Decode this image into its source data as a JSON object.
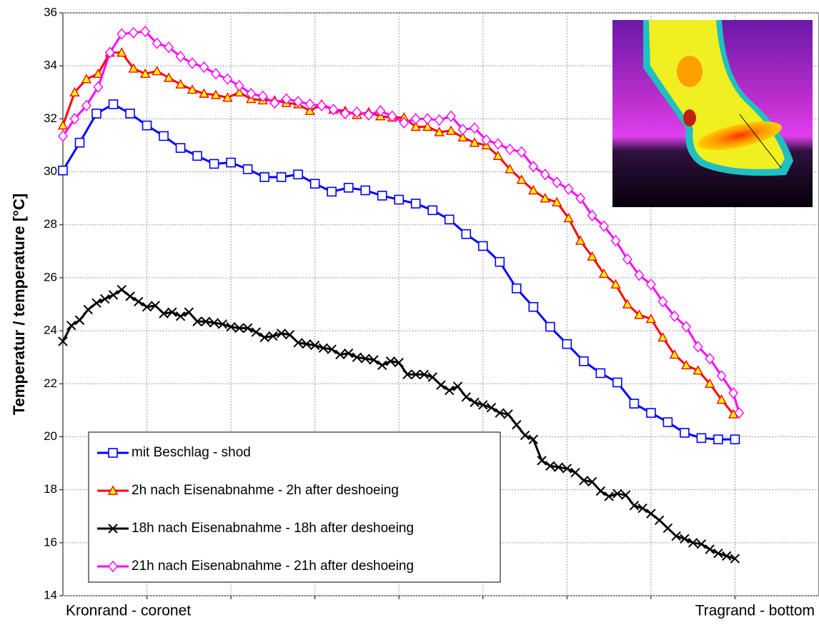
{
  "chart_data": {
    "type": "line",
    "y_label": "Temperatur / temperature [°C]",
    "ylim": [
      14,
      36
    ],
    "yticks": [
      14,
      16,
      18,
      20,
      22,
      24,
      26,
      28,
      30,
      32,
      34,
      36
    ],
    "xlim": [
      0,
      9
    ],
    "xgrid": [
      1,
      2,
      3,
      4,
      5,
      6,
      7,
      8
    ],
    "x_labels": [
      {
        "value": 0,
        "label": "Kronrand - coronet"
      },
      {
        "value": 9,
        "label": "Tragrand - bottom"
      }
    ],
    "grid": true,
    "legend": "lower left",
    "series": [
      {
        "name": "mit Beschlag - shod",
        "color": "#0000ff",
        "marker": "square",
        "x": [
          0,
          0.2,
          0.4,
          0.6,
          0.8,
          1,
          1.2,
          1.4,
          1.6,
          1.8,
          2,
          2.2,
          2.4,
          2.6,
          2.8,
          3,
          3.2,
          3.4,
          3.6,
          3.8,
          4,
          4.2,
          4.4,
          4.6,
          4.8,
          5,
          5.2,
          5.4,
          5.6,
          5.8,
          6,
          6.2,
          6.4,
          6.6,
          6.8,
          7,
          7.2,
          7.4,
          7.6,
          7.8,
          8
        ],
        "values": [
          30.05,
          31.1,
          32.2,
          32.55,
          32.2,
          31.75,
          31.35,
          30.9,
          30.6,
          30.3,
          30.35,
          30.1,
          29.8,
          29.8,
          29.9,
          29.55,
          29.25,
          29.4,
          29.3,
          29.1,
          28.95,
          28.8,
          28.55,
          28.2,
          27.65,
          27.2,
          26.6,
          25.6,
          24.9,
          24.15,
          23.5,
          22.85,
          22.4,
          22.05,
          21.25,
          20.9,
          20.55,
          20.15,
          19.95,
          19.9,
          19.9
        ]
      },
      {
        "name": "2h nach Eisenabnahme - 2h after deshoeing",
        "color": "#ff0000",
        "marker": "triangle",
        "x": [
          0,
          0.14,
          0.28,
          0.42,
          0.56,
          0.7,
          0.84,
          0.98,
          1.12,
          1.26,
          1.4,
          1.54,
          1.68,
          1.82,
          1.96,
          2.1,
          2.24,
          2.38,
          2.52,
          2.66,
          2.8,
          2.94,
          3.08,
          3.22,
          3.36,
          3.5,
          3.64,
          3.78,
          3.92,
          4.06,
          4.2,
          4.34,
          4.48,
          4.62,
          4.76,
          4.9,
          5.04,
          5.18,
          5.32,
          5.46,
          5.6,
          5.74,
          5.88,
          6.02,
          6.16,
          6.3,
          6.44,
          6.58,
          6.72,
          6.86,
          7,
          7.14,
          7.28,
          7.42,
          7.56,
          7.7,
          7.84,
          7.98
        ],
        "values": [
          31.75,
          33.0,
          33.5,
          33.7,
          34.5,
          34.5,
          33.9,
          33.7,
          33.8,
          33.55,
          33.3,
          33.1,
          32.95,
          32.9,
          32.8,
          33.0,
          32.75,
          32.7,
          32.7,
          32.6,
          32.55,
          32.3,
          32.55,
          32.35,
          32.3,
          32.15,
          32.25,
          32.1,
          32.05,
          32.05,
          31.7,
          31.7,
          31.5,
          31.55,
          31.3,
          31.1,
          31.0,
          30.6,
          30.1,
          29.7,
          29.3,
          29.0,
          28.85,
          28.25,
          27.4,
          26.8,
          26.15,
          25.75,
          25.0,
          24.6,
          24.45,
          23.75,
          23.1,
          22.7,
          22.5,
          22.0,
          21.4,
          20.85
        ]
      },
      {
        "name": "18h nach Eisenabnahme - 18h after deshoeing",
        "color": "#000000",
        "marker": "cross",
        "x": [
          0,
          0.1,
          0.2,
          0.3,
          0.4,
          0.5,
          0.6,
          0.7,
          0.8,
          0.9,
          1,
          1.1,
          1.2,
          1.3,
          1.4,
          1.5,
          1.6,
          1.7,
          1.8,
          1.9,
          2,
          2.1,
          2.2,
          2.3,
          2.4,
          2.5,
          2.6,
          2.7,
          2.8,
          2.9,
          3,
          3.1,
          3.2,
          3.3,
          3.4,
          3.5,
          3.6,
          3.7,
          3.8,
          3.9,
          4,
          4.1,
          4.2,
          4.3,
          4.4,
          4.5,
          4.6,
          4.7,
          4.8,
          4.9,
          5,
          5.1,
          5.2,
          5.3,
          5.4,
          5.5,
          5.6,
          5.7,
          5.8,
          5.9,
          6,
          6.1,
          6.2,
          6.3,
          6.4,
          6.5,
          6.6,
          6.7,
          6.8,
          6.9,
          7,
          7.1,
          7.2,
          7.3,
          7.4,
          7.5,
          7.6,
          7.7,
          7.8,
          7.9,
          8
        ],
        "values": [
          23.6,
          24.2,
          24.4,
          24.8,
          25.05,
          25.2,
          25.35,
          25.55,
          25.3,
          25.1,
          24.9,
          24.95,
          24.65,
          24.7,
          24.55,
          24.7,
          24.35,
          24.35,
          24.3,
          24.25,
          24.15,
          24.1,
          24.1,
          23.95,
          23.75,
          23.8,
          23.9,
          23.85,
          23.55,
          23.5,
          23.45,
          23.35,
          23.3,
          23.1,
          23.15,
          23.0,
          22.95,
          22.9,
          22.7,
          22.85,
          22.8,
          22.35,
          22.35,
          22.35,
          22.25,
          21.95,
          21.75,
          21.9,
          21.5,
          21.3,
          21.2,
          21.1,
          20.9,
          20.85,
          20.45,
          20.05,
          19.9,
          19.1,
          18.9,
          18.85,
          18.8,
          18.65,
          18.35,
          18.3,
          17.95,
          17.75,
          17.85,
          17.8,
          17.4,
          17.3,
          17.1,
          16.85,
          16.55,
          16.25,
          16.15,
          16.0,
          15.95,
          15.75,
          15.6,
          15.5,
          15.4
        ]
      },
      {
        "name": "21h nach Eisenabnahme - 21h after deshoeing",
        "color": "#ff00ff",
        "marker": "diamond",
        "x": [
          0,
          0.14,
          0.28,
          0.42,
          0.56,
          0.7,
          0.84,
          0.98,
          1.12,
          1.26,
          1.4,
          1.54,
          1.68,
          1.82,
          1.96,
          2.1,
          2.24,
          2.38,
          2.52,
          2.66,
          2.8,
          2.94,
          3.08,
          3.22,
          3.36,
          3.5,
          3.64,
          3.78,
          3.92,
          4.06,
          4.2,
          4.34,
          4.48,
          4.62,
          4.76,
          4.9,
          5.04,
          5.18,
          5.32,
          5.46,
          5.6,
          5.74,
          5.88,
          6.02,
          6.16,
          6.3,
          6.44,
          6.58,
          6.72,
          6.86,
          7,
          7.14,
          7.28,
          7.42,
          7.56,
          7.7,
          7.84,
          7.98,
          8.05
        ],
        "values": [
          31.35,
          32.0,
          32.5,
          33.2,
          34.5,
          35.2,
          35.25,
          35.3,
          34.85,
          34.7,
          34.35,
          34.1,
          33.95,
          33.7,
          33.5,
          33.25,
          32.95,
          32.85,
          32.6,
          32.75,
          32.65,
          32.55,
          32.5,
          32.35,
          32.2,
          32.25,
          32.15,
          32.3,
          32.1,
          31.85,
          32.0,
          32.0,
          31.95,
          32.1,
          31.6,
          31.65,
          31.2,
          31.05,
          30.85,
          30.75,
          30.2,
          29.9,
          29.6,
          29.35,
          29.0,
          28.35,
          27.95,
          27.4,
          26.7,
          26.1,
          25.75,
          25.1,
          24.55,
          24.15,
          23.4,
          22.95,
          22.3,
          21.65,
          20.9
        ]
      }
    ]
  }
}
